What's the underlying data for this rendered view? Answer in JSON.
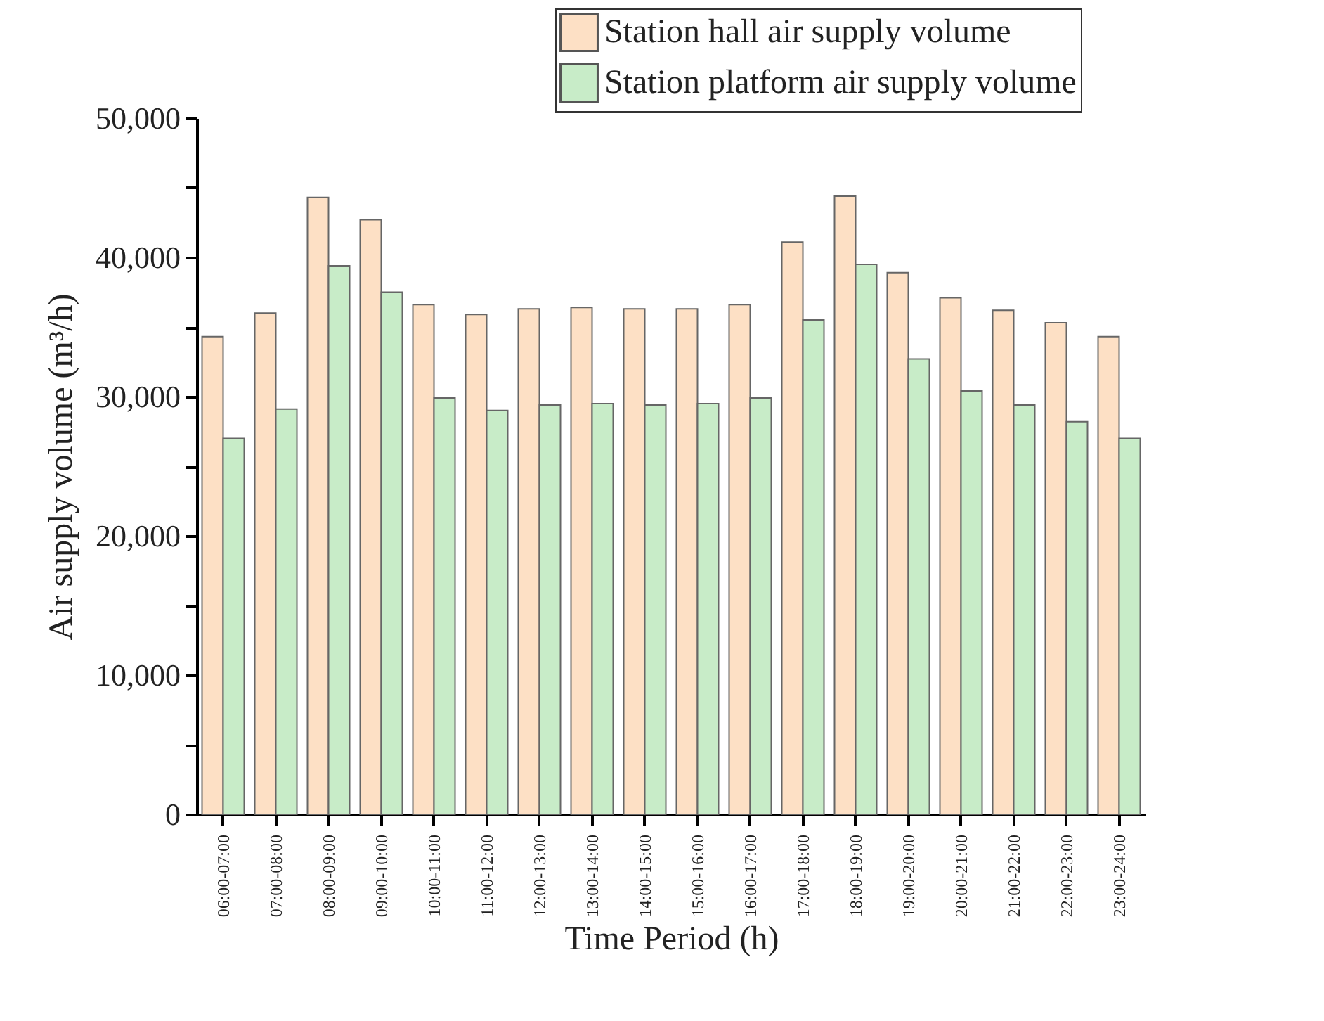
{
  "chart_data": {
    "type": "bar",
    "xlabel": "Time Period (h)",
    "ylabel": "Air supply volume (m³/h)",
    "categories": [
      "06:00-07:00",
      "07:00-08:00",
      "08:00-09:00",
      "09:00-10:00",
      "10:00-11:00",
      "11:00-12:00",
      "12:00-13:00",
      "13:00-14:00",
      "14:00-15:00",
      "15:00-16:00",
      "16:00-17:00",
      "17:00-18:00",
      "18:00-19:00",
      "19:00-20:00",
      "20:00-21:00",
      "21:00-22:00",
      "22:00-23:00",
      "23:00-24:00"
    ],
    "series": [
      {
        "name": "Station hall air supply volume",
        "color": "#fde0c5",
        "values": [
          34300,
          36000,
          44300,
          42700,
          36600,
          35900,
          36300,
          36400,
          36300,
          36300,
          36600,
          41100,
          44400,
          38900,
          37100,
          36200,
          35300,
          34300
        ]
      },
      {
        "name": "Station platform air supply volume",
        "color": "#c8ecc8",
        "values": [
          27000,
          29100,
          39400,
          37500,
          29900,
          29000,
          29400,
          29500,
          29400,
          29500,
          29900,
          35500,
          39500,
          32700,
          30400,
          29400,
          28200,
          27000
        ]
      }
    ],
    "ylim": [
      0,
      50000
    ],
    "yticks": [
      {
        "value": 0,
        "label": "0"
      },
      {
        "value": 5000,
        "label": null
      },
      {
        "value": 10000,
        "label": "10,000"
      },
      {
        "value": 15000,
        "label": null
      },
      {
        "value": 20000,
        "label": "20,000"
      },
      {
        "value": 25000,
        "label": null
      },
      {
        "value": 30000,
        "label": "30,000"
      },
      {
        "value": 35000,
        "label": null
      },
      {
        "value": 40000,
        "label": "40,000"
      },
      {
        "value": 45000,
        "label": null
      },
      {
        "value": 50000,
        "label": "50,000"
      }
    ],
    "grid": false,
    "legend": "top right"
  }
}
